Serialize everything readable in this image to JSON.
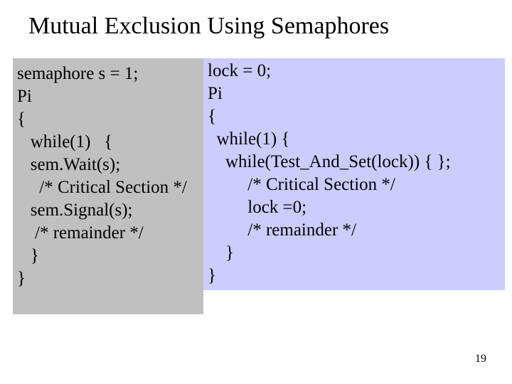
{
  "title": "Mutual Exclusion Using Semaphores",
  "page_number": "19",
  "colors": {
    "background": "#ffffff",
    "left_panel_bg": "#c0c0c0",
    "right_panel_bg": "#ccccff",
    "text": "#000000"
  },
  "typography": {
    "title_fontsize": 34,
    "code_fontsize": 25,
    "pagenum_fontsize": 16,
    "font_family": "Times New Roman"
  },
  "left_code": {
    "l0": "semaphore s = 1;",
    "l1": "Pi",
    "l2": "{",
    "l3": "   while(1)   {",
    "l4": "   sem.Wait(s);",
    "l5": "     /* Critical Section */",
    "l6": "   sem.Signal(s);",
    "l7": "    /* remainder */",
    "l8": "   }",
    "l9": "}"
  },
  "right_code": {
    "l0": "lock = 0;",
    "l1": "Pi",
    "l2": "{",
    "l3": "  while(1) {",
    "l4": "    while(Test_And_Set(lock)) { };",
    "l5": "         /* Critical Section */",
    "l6": "         lock =0;",
    "l7": "         /* remainder */",
    "l8": "    }",
    "l9": "}"
  }
}
